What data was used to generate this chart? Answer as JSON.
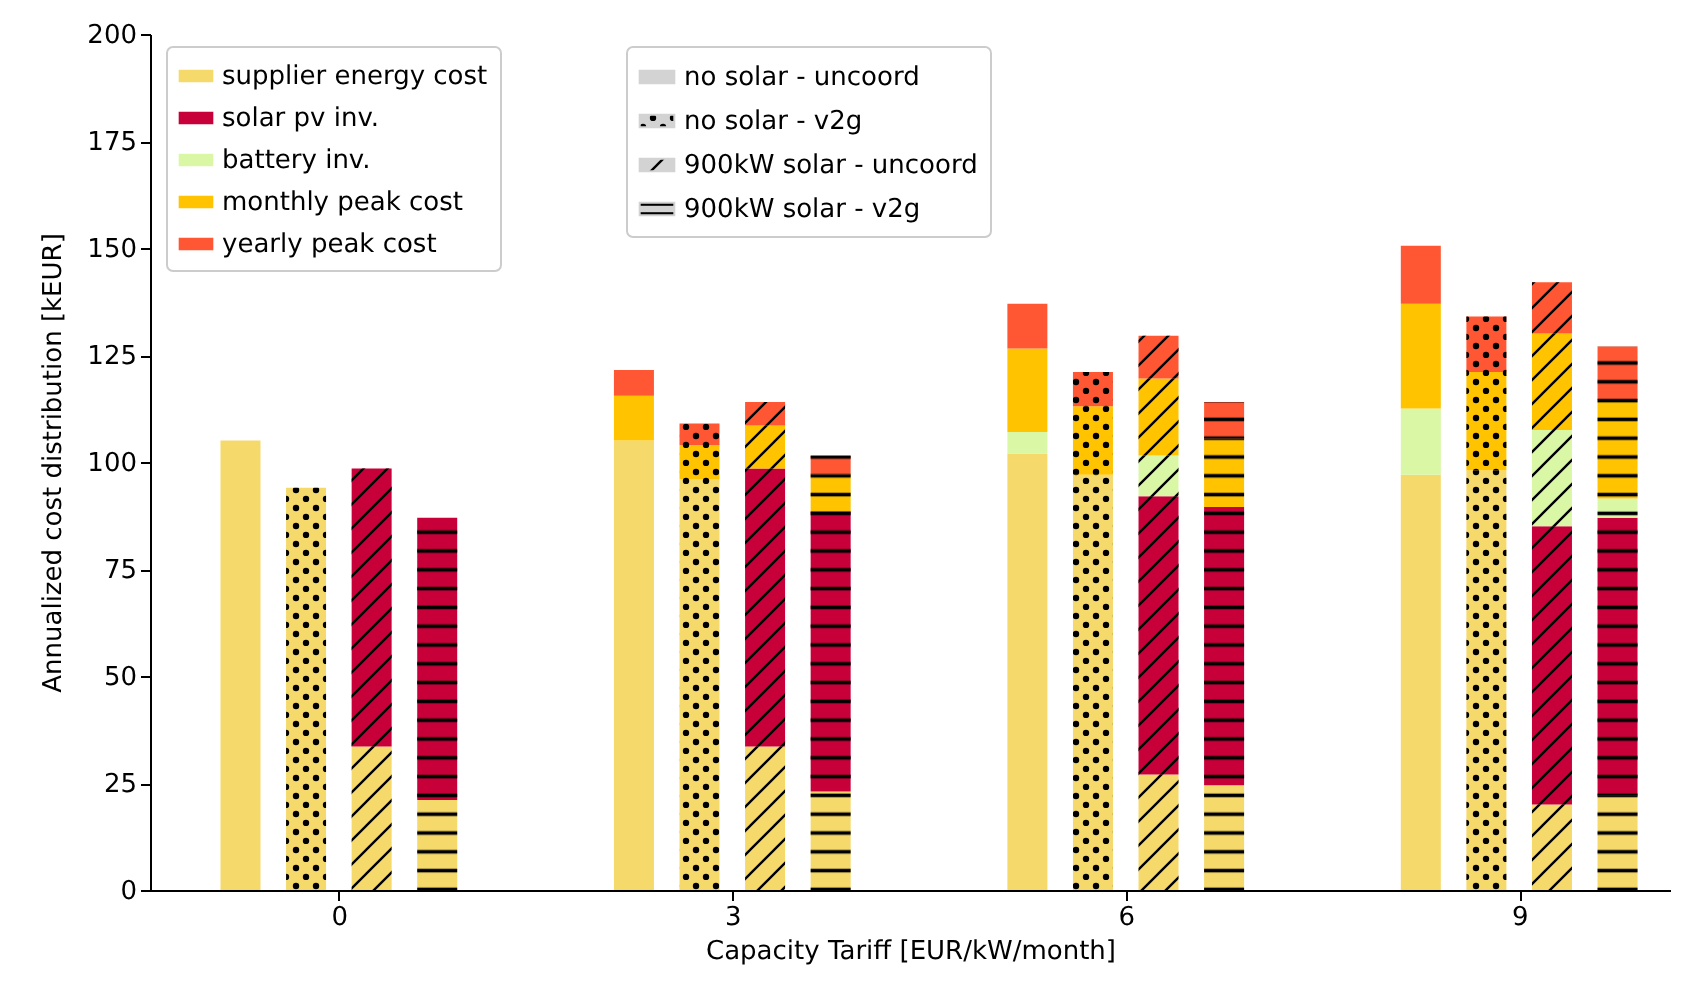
{
  "chart_data": {
    "type": "bar",
    "stacked": true,
    "xlabel": "Capacity Tariff [EUR/kW/month]",
    "ylabel": "Annualized cost distribution [kEUR]",
    "legend": "top left",
    "annotations": [
      "no solar - uncoord",
      "no solar - v2g",
      "900kW solar - uncoord",
      "900kW solar - v2g"
    ],
    "x": [
      -0.75,
      -0.25,
      0.25,
      0.75,
      2.25,
      2.75,
      3.25,
      3.75,
      5.25,
      5.75,
      6.25,
      6.75,
      8.25,
      8.75,
      9.25,
      9.75
    ],
    "xlim": [
      -1.44,
      10.15
    ],
    "xticks": [
      0,
      3,
      6,
      9
    ],
    "ylim": [
      0,
      200
    ],
    "yticks": [
      0,
      25,
      50,
      75,
      100,
      125,
      150,
      175,
      200
    ],
    "series": [
      {
        "name": "supplier energy cost",
        "color": "#f5d96b",
        "values": [
          105,
          94,
          33.5,
          21,
          105,
          96,
          33.5,
          23,
          102,
          97,
          27,
          24.5,
          97,
          98,
          20,
          22
        ]
      },
      {
        "name": "solar pv inv.",
        "color": "#c70039",
        "values": [
          0,
          0,
          65,
          66,
          0,
          0,
          65,
          65.5,
          0,
          0,
          65,
          65,
          0,
          0,
          65,
          65
        ]
      },
      {
        "name": "battery inv.",
        "color": "#daf7a6",
        "values": [
          0,
          0,
          0,
          0,
          0,
          0,
          0,
          0,
          5,
          0,
          9.5,
          0,
          15.5,
          0,
          22.5,
          4.5
        ]
      },
      {
        "name": "monthly peak cost",
        "color": "#ffc300",
        "values": [
          0,
          0,
          0,
          0,
          10.5,
          8,
          10,
          8.5,
          19.5,
          16,
          18,
          16,
          24.5,
          23,
          22.5,
          23
        ]
      },
      {
        "name": "yearly peak cost",
        "color": "#ff5733",
        "values": [
          0,
          0,
          0,
          0,
          6,
          5,
          5.5,
          4.5,
          10.5,
          8,
          10,
          8.5,
          13.5,
          13,
          12,
          12.5
        ]
      }
    ]
  }
}
